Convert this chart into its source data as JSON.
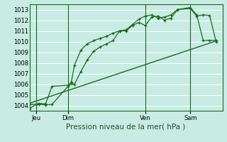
{
  "title": "Pression niveau de la mer( hPa )",
  "bg_color": "#c8ece4",
  "grid_color": "#ffffff",
  "grid_minor_color": "#e0f0ea",
  "line_color": "#1a6b1a",
  "ylim": [
    1003.5,
    1013.5
  ],
  "yticks": [
    1004,
    1005,
    1006,
    1007,
    1008,
    1009,
    1010,
    1011,
    1012,
    1013
  ],
  "xlim": [
    0,
    60
  ],
  "xtick_labels": [
    "Jeu",
    "Dim",
    "Ven",
    "Sam"
  ],
  "xtick_positions": [
    2,
    12,
    36,
    50
  ],
  "vline_positions": [
    2,
    12,
    36,
    50
  ],
  "series1_x": [
    0,
    2,
    3,
    5,
    7,
    12,
    13,
    14,
    16,
    18,
    20,
    22,
    24,
    26,
    28,
    30,
    32,
    34,
    36,
    38,
    40,
    42,
    44,
    46,
    50,
    52,
    54,
    56,
    58
  ],
  "series1_y": [
    1003.7,
    1004.1,
    1004.1,
    1004.05,
    1004.1,
    1005.8,
    1006.05,
    1006.0,
    1007.2,
    1008.3,
    1009.1,
    1009.5,
    1009.8,
    1010.1,
    1011.0,
    1011.0,
    1011.5,
    1011.8,
    1011.5,
    1012.3,
    1012.4,
    1012.0,
    1012.2,
    1013.0,
    1013.1,
    1012.4,
    1012.5,
    1012.45,
    1010.0
  ],
  "series2_x": [
    0,
    2,
    3,
    5,
    7,
    12,
    13,
    14,
    16,
    18,
    20,
    22,
    24,
    26,
    28,
    30,
    32,
    34,
    36,
    38,
    40,
    42,
    44,
    46,
    50,
    52,
    54,
    56,
    58
  ],
  "series2_y": [
    1004.1,
    1004.1,
    1004.2,
    1004.15,
    1005.8,
    1005.9,
    1006.2,
    1007.8,
    1009.2,
    1009.8,
    1010.1,
    1010.3,
    1010.5,
    1010.8,
    1011.0,
    1011.1,
    1011.6,
    1012.1,
    1012.4,
    1012.5,
    1012.2,
    1012.3,
    1012.5,
    1013.0,
    1013.2,
    1012.5,
    1010.1,
    1010.1,
    1010.1
  ],
  "series3_x": [
    0,
    58
  ],
  "series3_y": [
    1004.2,
    1010.05
  ],
  "total_x": 60,
  "ylabel_fontsize": 7.0,
  "xlabel_fontsize": 7.5,
  "tick_fontsize": 6.0
}
